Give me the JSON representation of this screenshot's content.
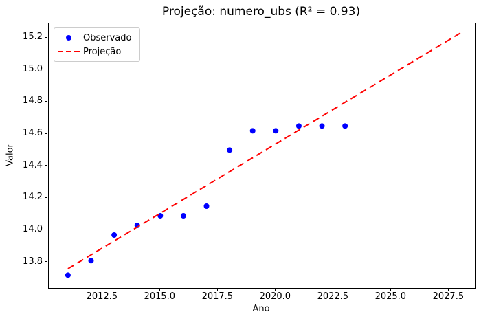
{
  "chart_data": {
    "type": "scatter",
    "title": "Projeção: numero_ubs (R² = 0.93)",
    "r_squared": 0.93,
    "xlabel": "Ano",
    "ylabel": "Valor",
    "xlim": [
      2010.17,
      2028.62
    ],
    "ylim": [
      13.64,
      15.29
    ],
    "grid": false,
    "x_ticks": [
      2012.5,
      2015.0,
      2017.5,
      2020.0,
      2022.5,
      2025.0,
      2027.5
    ],
    "x_tick_labels": [
      "2012.5",
      "2015.0",
      "2017.5",
      "2020.0",
      "2022.5",
      "2025.0",
      "2027.5"
    ],
    "y_ticks": [
      13.8,
      14.0,
      14.2,
      14.4,
      14.6,
      14.8,
      15.0,
      15.2
    ],
    "y_tick_labels": [
      "13.8",
      "14.0",
      "14.2",
      "14.4",
      "14.6",
      "14.8",
      "15.0",
      "15.2"
    ],
    "colors": {
      "observed": "#0000ff",
      "projection": "#ff0000",
      "axis": "#000000",
      "legend_border": "#cccccc"
    },
    "legend": {
      "position": "upper-left",
      "entries": [
        {
          "label": "Observado",
          "marker": "dot",
          "color": "#0000ff"
        },
        {
          "label": "Projeção",
          "marker": "dashed-line",
          "color": "#ff0000"
        }
      ]
    },
    "series": [
      {
        "name": "Observado",
        "type": "scatter",
        "color": "#0000ff",
        "marker_radius": 4,
        "x": [
          2011,
          2012,
          2013,
          2014,
          2015,
          2016,
          2017,
          2018,
          2019,
          2020,
          2021,
          2022,
          2023
        ],
        "y": [
          13.72,
          13.81,
          13.97,
          14.03,
          14.09,
          14.09,
          14.15,
          14.5,
          14.62,
          14.62,
          14.65,
          14.65,
          14.65
        ]
      },
      {
        "name": "Projeção",
        "type": "line",
        "style": "dashed",
        "color": "#ff0000",
        "line_width": 2,
        "dash_pattern": [
          10,
          6
        ],
        "x": [
          2011,
          2028
        ],
        "y": [
          13.76,
          15.23
        ]
      }
    ]
  }
}
